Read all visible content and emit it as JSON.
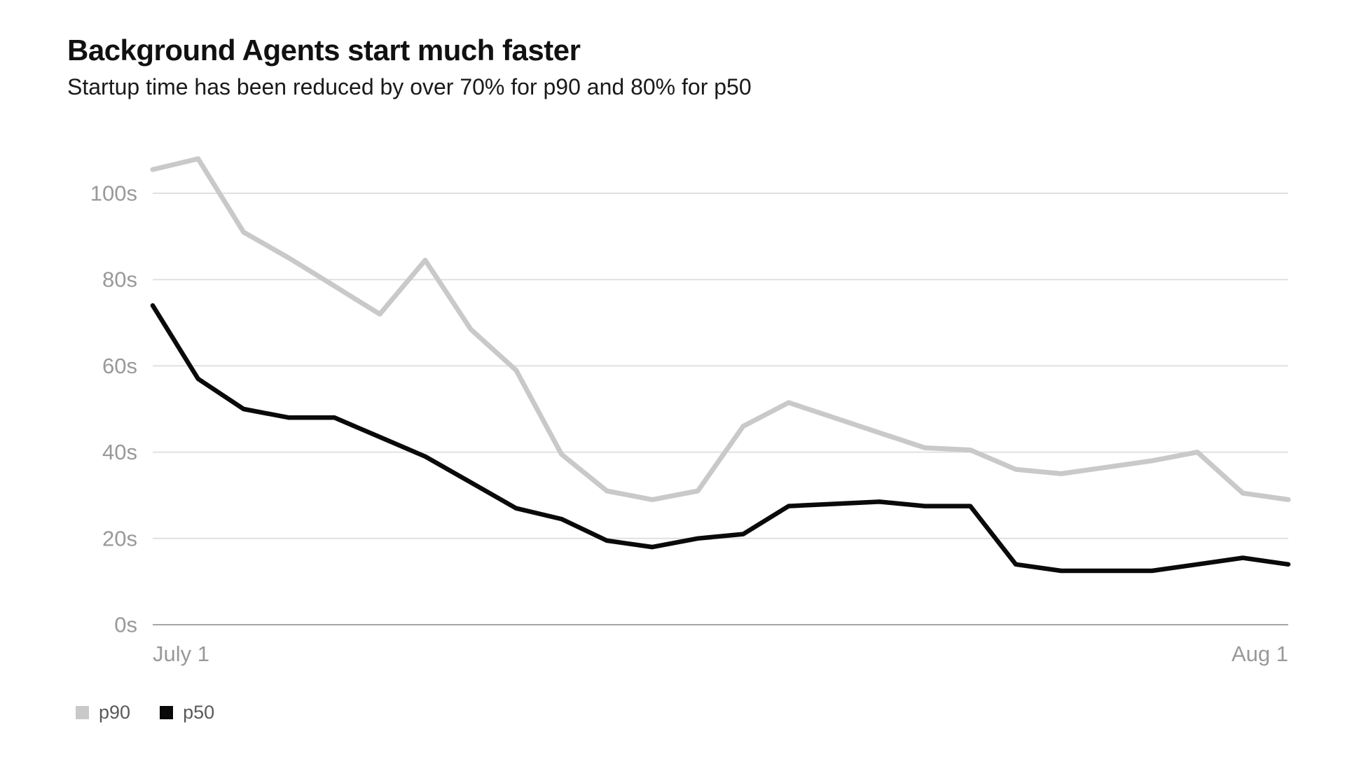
{
  "chart_data": {
    "type": "line",
    "title": "Background Agents start much faster",
    "subtitle": "Startup time has been reduced by over 70% for p90 and 80% for p50",
    "x_axis": {
      "tick_labels": [
        "July 1",
        "Aug 1"
      ],
      "tick_point_indices": [
        0,
        25
      ],
      "num_points": 26
    },
    "y_axis": {
      "unit": "seconds",
      "ticks": [
        0,
        20,
        40,
        60,
        80,
        100
      ],
      "tick_labels": [
        "0s",
        "20s",
        "40s",
        "60s",
        "80s",
        "100s"
      ],
      "range": [
        0,
        112
      ]
    },
    "grid": "horizontal",
    "legend": {
      "position": "bottom-left",
      "entries": [
        {
          "label": "p90",
          "color": "#c9c9c9"
        },
        {
          "label": "p50",
          "color": "#0a0a0a"
        }
      ]
    },
    "series": [
      {
        "name": "p90",
        "color": "#c9c9c9",
        "values": [
          105.5,
          108,
          91,
          85,
          78.5,
          72,
          84.5,
          68.5,
          59,
          39.5,
          31,
          29,
          31,
          46,
          51.5,
          48,
          44.5,
          41,
          40.5,
          36,
          35,
          36.5,
          38,
          40,
          30.5,
          29
        ]
      },
      {
        "name": "p50",
        "color": "#0a0a0a",
        "values": [
          74,
          57,
          50,
          48,
          48,
          43.5,
          39,
          33,
          27,
          24.5,
          19.5,
          18,
          20,
          21,
          27.5,
          28,
          28.5,
          27.5,
          27.5,
          14,
          12.5,
          12.5,
          12.5,
          14,
          15.5,
          14
        ]
      }
    ],
    "colors": {
      "background": "#ffffff",
      "gridline": "#e0e0e0",
      "axis_line": "#a6a6a6",
      "tick_text": "#999999",
      "title_text": "#111111",
      "subtitle_text": "#1a1a1a",
      "legend_text": "#595959"
    }
  }
}
